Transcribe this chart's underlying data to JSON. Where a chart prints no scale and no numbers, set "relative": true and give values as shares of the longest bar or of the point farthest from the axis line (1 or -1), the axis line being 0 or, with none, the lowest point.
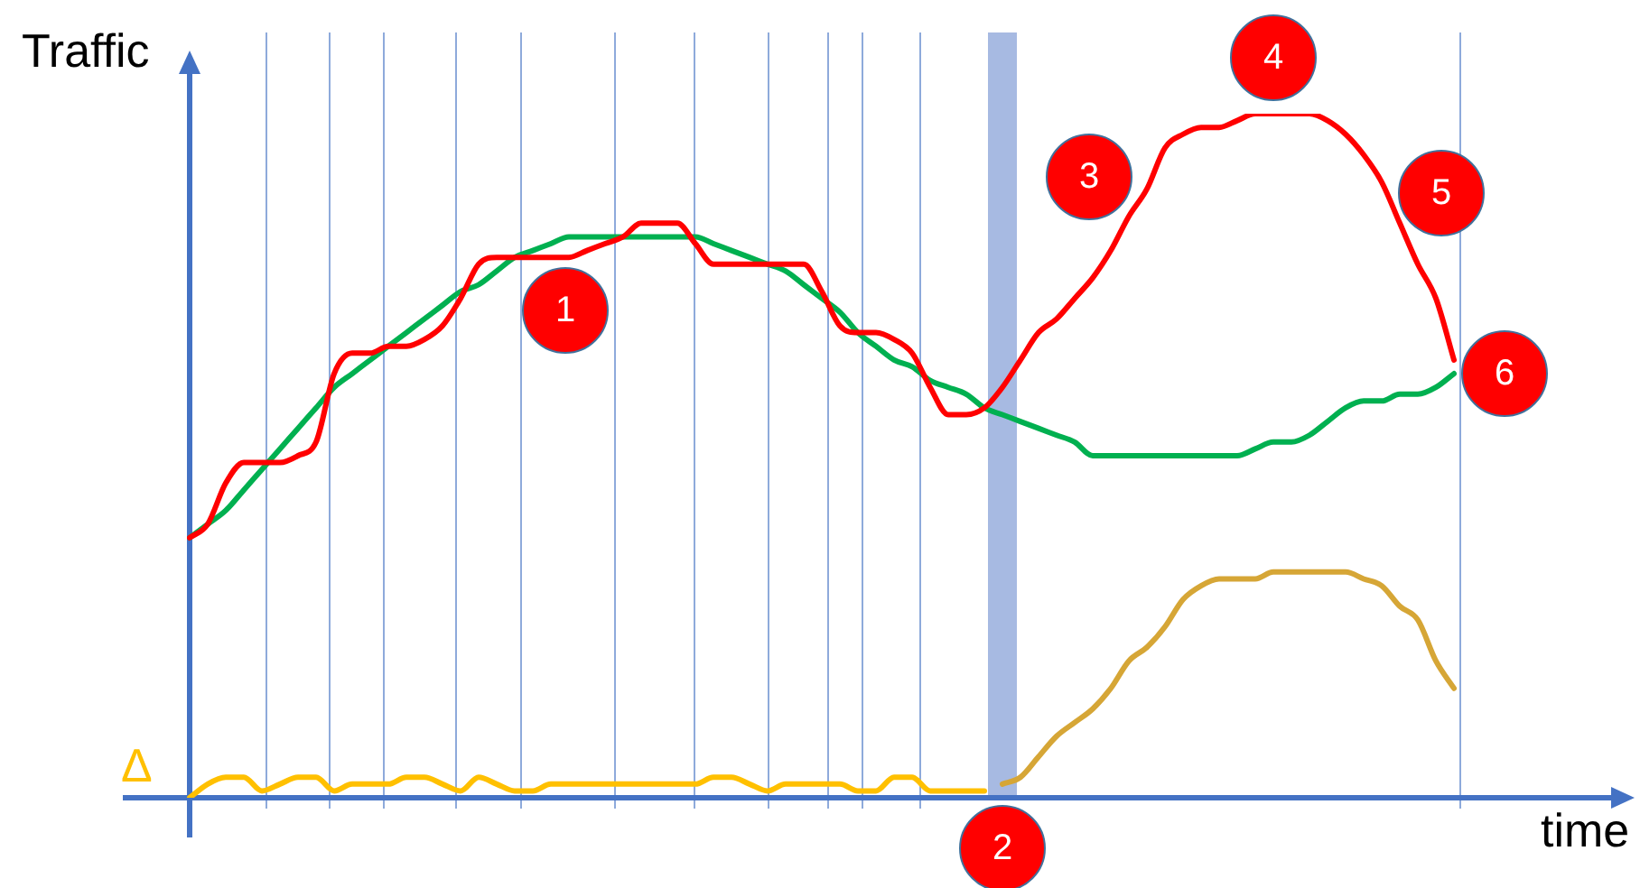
{
  "chart_data": {
    "type": "line",
    "relative": true,
    "xlabel": "time",
    "ylabel": "Traffic",
    "tick_labels": false,
    "grid": "x",
    "categories": [
      null,
      null,
      null,
      null,
      null,
      null,
      null,
      null,
      null,
      null,
      null,
      null,
      null,
      null,
      null,
      null,
      null,
      null,
      null,
      null,
      null,
      null,
      null,
      null,
      null,
      null,
      null,
      null,
      null,
      null,
      null,
      null,
      null,
      null,
      null,
      null,
      null,
      null,
      null,
      null,
      null,
      null,
      null,
      null,
      null,
      null,
      null,
      null,
      null,
      null,
      null,
      null,
      null,
      null,
      null,
      null,
      null,
      null,
      null,
      null,
      null,
      null,
      null,
      null,
      null,
      null,
      null,
      null,
      null,
      null,
      null
    ],
    "series": [
      {
        "color": "#ff0000",
        "values": [
          0.38,
          0.4,
          0.46,
          0.49,
          0.49,
          0.49,
          0.5,
          0.52,
          0.62,
          0.65,
          0.65,
          0.66,
          0.66,
          0.67,
          0.69,
          0.73,
          0.78,
          0.79,
          0.79,
          0.79,
          0.79,
          0.79,
          0.8,
          0.81,
          0.82,
          0.84,
          0.84,
          0.84,
          0.81,
          0.78,
          0.78,
          0.78,
          0.78,
          0.78,
          0.78,
          0.74,
          0.69,
          0.68,
          0.68,
          0.67,
          0.65,
          0.6,
          0.56,
          0.56,
          0.57,
          0.6,
          0.64,
          0.68,
          0.7,
          0.73,
          0.76,
          0.8,
          0.85,
          0.89,
          0.95,
          0.97,
          0.98,
          0.98,
          0.99,
          1.0,
          1.0,
          1.0,
          1.0,
          0.99,
          0.97,
          0.94,
          0.9,
          0.84,
          0.78,
          0.73,
          0.64
        ]
      },
      {
        "color": "#00b050",
        "values": [
          0.38,
          0.4,
          0.42,
          0.45,
          0.48,
          0.51,
          0.54,
          0.57,
          0.6,
          0.62,
          0.64,
          0.66,
          0.68,
          0.7,
          0.72,
          0.74,
          0.75,
          0.77,
          0.79,
          0.8,
          0.81,
          0.82,
          0.82,
          0.82,
          0.82,
          0.82,
          0.82,
          0.82,
          0.82,
          0.81,
          0.8,
          0.79,
          0.78,
          0.77,
          0.75,
          0.73,
          0.71,
          0.68,
          0.66,
          0.64,
          0.63,
          0.61,
          0.6,
          0.59,
          0.57,
          0.56,
          0.55,
          0.54,
          0.53,
          0.52,
          0.5,
          0.5,
          0.5,
          0.5,
          0.5,
          0.5,
          0.5,
          0.5,
          0.5,
          0.51,
          0.52,
          0.52,
          0.53,
          0.55,
          0.57,
          0.58,
          0.58,
          0.59,
          0.59,
          0.6,
          0.62
        ]
      },
      {
        "name": "Δ",
        "color": "#ffc000",
        "values": [
          0,
          0.02,
          0.03,
          0.03,
          0.01,
          0.02,
          0.03,
          0.03,
          0.01,
          0.02,
          0.02,
          0.02,
          0.03,
          0.03,
          0.02,
          0.01,
          0.03,
          0.02,
          0.01,
          0.01,
          0.02,
          0.02,
          0.02,
          0.02,
          0.02,
          0.02,
          0.02,
          0.02,
          0.02,
          0.03,
          0.03,
          0.02,
          0.01,
          0.02,
          0.02,
          0.02,
          0.02,
          0.01,
          0.01,
          0.03,
          0.03,
          0.01,
          0.01,
          0.01,
          0.01,
          null,
          null,
          null,
          null,
          null,
          null,
          null,
          null,
          null,
          null,
          null,
          null,
          null,
          null,
          null,
          null,
          null,
          null,
          null,
          null,
          null,
          null,
          null,
          null,
          null,
          null
        ]
      },
      {
        "color": "#d6a636",
        "values": [
          null,
          null,
          null,
          null,
          null,
          null,
          null,
          null,
          null,
          null,
          null,
          null,
          null,
          null,
          null,
          null,
          null,
          null,
          null,
          null,
          null,
          null,
          null,
          null,
          null,
          null,
          null,
          null,
          null,
          null,
          null,
          null,
          null,
          null,
          null,
          null,
          null,
          null,
          null,
          null,
          null,
          null,
          null,
          null,
          null,
          0.02,
          0.03,
          0.06,
          0.09,
          0.11,
          0.13,
          0.16,
          0.2,
          0.22,
          0.25,
          0.29,
          0.31,
          0.32,
          0.32,
          0.32,
          0.33,
          0.33,
          0.33,
          0.33,
          0.33,
          0.32,
          0.31,
          0.28,
          0.26,
          0.2,
          0.16
        ]
      }
    ],
    "annotations": [
      "1",
      "2",
      "3",
      "4",
      "5",
      "6"
    ]
  }
}
